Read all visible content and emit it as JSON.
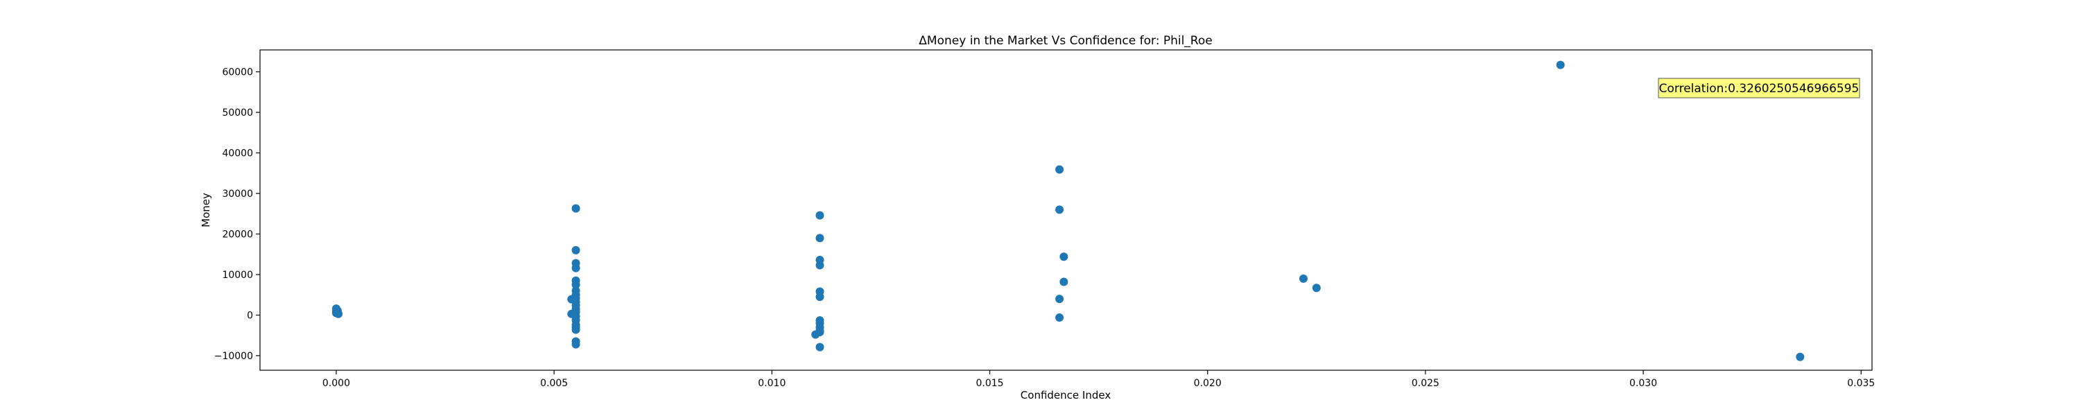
{
  "chart_data": {
    "type": "scatter",
    "title": "ΔMoney in the Market Vs Confidence for: Phil_Roe",
    "xlabel": "Confidence Index",
    "ylabel": "Money",
    "xlim": [
      -0.00175,
      0.03525
    ],
    "ylim": [
      -13600,
      65400
    ],
    "x_ticks": [
      0.0,
      0.005,
      0.01,
      0.015,
      0.02,
      0.025,
      0.03,
      0.035
    ],
    "x_tick_labels": [
      "0.000",
      "0.005",
      "0.010",
      "0.015",
      "0.020",
      "0.025",
      "0.030",
      "0.035"
    ],
    "y_ticks": [
      -10000,
      0,
      10000,
      20000,
      30000,
      40000,
      50000,
      60000
    ],
    "y_tick_labels": [
      "−10000",
      "0",
      "10000",
      "20000",
      "30000",
      "40000",
      "50000",
      "60000"
    ],
    "grid": false,
    "marker_color": "#1f77b4",
    "annotation": {
      "text": "Correlation:0.3260250546966595",
      "background": "#ffff80",
      "placement": "top-right"
    },
    "points": [
      {
        "x": 0.0,
        "y": 500
      },
      {
        "x": 0.0,
        "y": 1600
      },
      {
        "x": 0.0,
        "y": 900
      },
      {
        "x": 5e-05,
        "y": 300
      },
      {
        "x": 3e-05,
        "y": 1100
      },
      {
        "x": 0.0055,
        "y": 26300
      },
      {
        "x": 0.0055,
        "y": 16000
      },
      {
        "x": 0.0055,
        "y": 12800
      },
      {
        "x": 0.0055,
        "y": 11600
      },
      {
        "x": 0.0055,
        "y": 8500
      },
      {
        "x": 0.0055,
        "y": 7500
      },
      {
        "x": 0.0055,
        "y": 6000
      },
      {
        "x": 0.0055,
        "y": 5000
      },
      {
        "x": 0.0055,
        "y": 4200
      },
      {
        "x": 0.0054,
        "y": 3900
      },
      {
        "x": 0.0055,
        "y": 3200
      },
      {
        "x": 0.0055,
        "y": 2400
      },
      {
        "x": 0.0055,
        "y": 1500
      },
      {
        "x": 0.0055,
        "y": 800
      },
      {
        "x": 0.0054,
        "y": 300
      },
      {
        "x": 0.0055,
        "y": -300
      },
      {
        "x": 0.0055,
        "y": -1200
      },
      {
        "x": 0.0055,
        "y": -2400
      },
      {
        "x": 0.0055,
        "y": -3000
      },
      {
        "x": 0.0055,
        "y": -3600
      },
      {
        "x": 0.0055,
        "y": -6500
      },
      {
        "x": 0.0055,
        "y": -7200
      },
      {
        "x": 0.0111,
        "y": 24600
      },
      {
        "x": 0.0111,
        "y": 19000
      },
      {
        "x": 0.0111,
        "y": 13600
      },
      {
        "x": 0.0111,
        "y": 12300
      },
      {
        "x": 0.0111,
        "y": 5800
      },
      {
        "x": 0.0111,
        "y": 4500
      },
      {
        "x": 0.0111,
        "y": -1300
      },
      {
        "x": 0.0111,
        "y": -2000
      },
      {
        "x": 0.0111,
        "y": -3000
      },
      {
        "x": 0.0111,
        "y": -3800
      },
      {
        "x": 0.0111,
        "y": -4200
      },
      {
        "x": 0.011,
        "y": -4800
      },
      {
        "x": 0.0111,
        "y": -7900
      },
      {
        "x": 0.0166,
        "y": 35900
      },
      {
        "x": 0.0166,
        "y": 26000
      },
      {
        "x": 0.0167,
        "y": 14400
      },
      {
        "x": 0.0167,
        "y": 8200
      },
      {
        "x": 0.0166,
        "y": 4000
      },
      {
        "x": 0.0166,
        "y": -600
      },
      {
        "x": 0.0222,
        "y": 9000
      },
      {
        "x": 0.0225,
        "y": 6700
      },
      {
        "x": 0.0281,
        "y": 61700
      },
      {
        "x": 0.0336,
        "y": -10300
      }
    ]
  }
}
